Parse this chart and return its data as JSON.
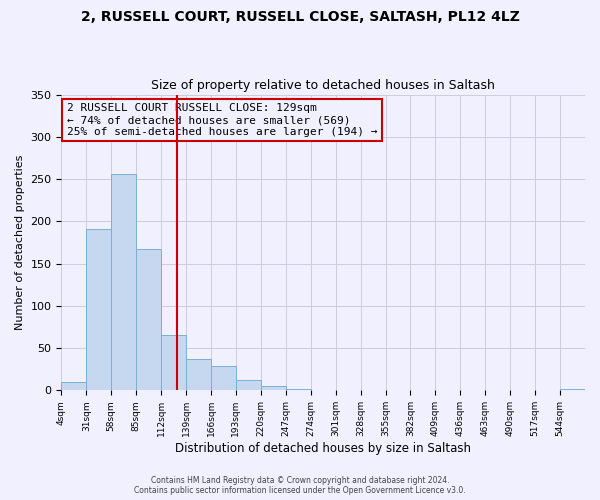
{
  "title": "2, RUSSELL COURT, RUSSELL CLOSE, SALTASH, PL12 4LZ",
  "subtitle": "Size of property relative to detached houses in Saltash",
  "xlabel": "Distribution of detached houses by size in Saltash",
  "ylabel": "Number of detached properties",
  "bar_values": [
    10,
    191,
    256,
    167,
    65,
    37,
    29,
    12,
    5,
    2,
    0,
    0,
    0,
    0,
    0,
    0,
    1,
    0,
    1,
    0,
    2
  ],
  "bin_edges": [
    4,
    31,
    58,
    85,
    112,
    139,
    166,
    193,
    220,
    247,
    274,
    301,
    328,
    355,
    382,
    409,
    436,
    463,
    490,
    517,
    544,
    571
  ],
  "tick_labels": [
    "4sqm",
    "31sqm",
    "58sqm",
    "85sqm",
    "112sqm",
    "139sqm",
    "166sqm",
    "193sqm",
    "220sqm",
    "247sqm",
    "274sqm",
    "301sqm",
    "328sqm",
    "355sqm",
    "382sqm",
    "409sqm",
    "436sqm",
    "463sqm",
    "490sqm",
    "517sqm",
    "544sqm"
  ],
  "bar_color": "#c5d8f0",
  "bar_edge_color": "#7bafd4",
  "vline_x": 129,
  "vline_color": "#cc0000",
  "ylim": [
    0,
    350
  ],
  "yticks": [
    0,
    50,
    100,
    150,
    200,
    250,
    300,
    350
  ],
  "annotation_title": "2 RUSSELL COURT RUSSELL CLOSE: 129sqm",
  "annotation_line1": "← 74% of detached houses are smaller (569)",
  "annotation_line2": "25% of semi-detached houses are larger (194) →",
  "annotation_box_color": "#cc0000",
  "footer1": "Contains HM Land Registry data © Crown copyright and database right 2024.",
  "footer2": "Contains public sector information licensed under the Open Government Licence v3.0.",
  "bg_color": "#f0f0ff",
  "title_fontsize": 10,
  "subtitle_fontsize": 9
}
